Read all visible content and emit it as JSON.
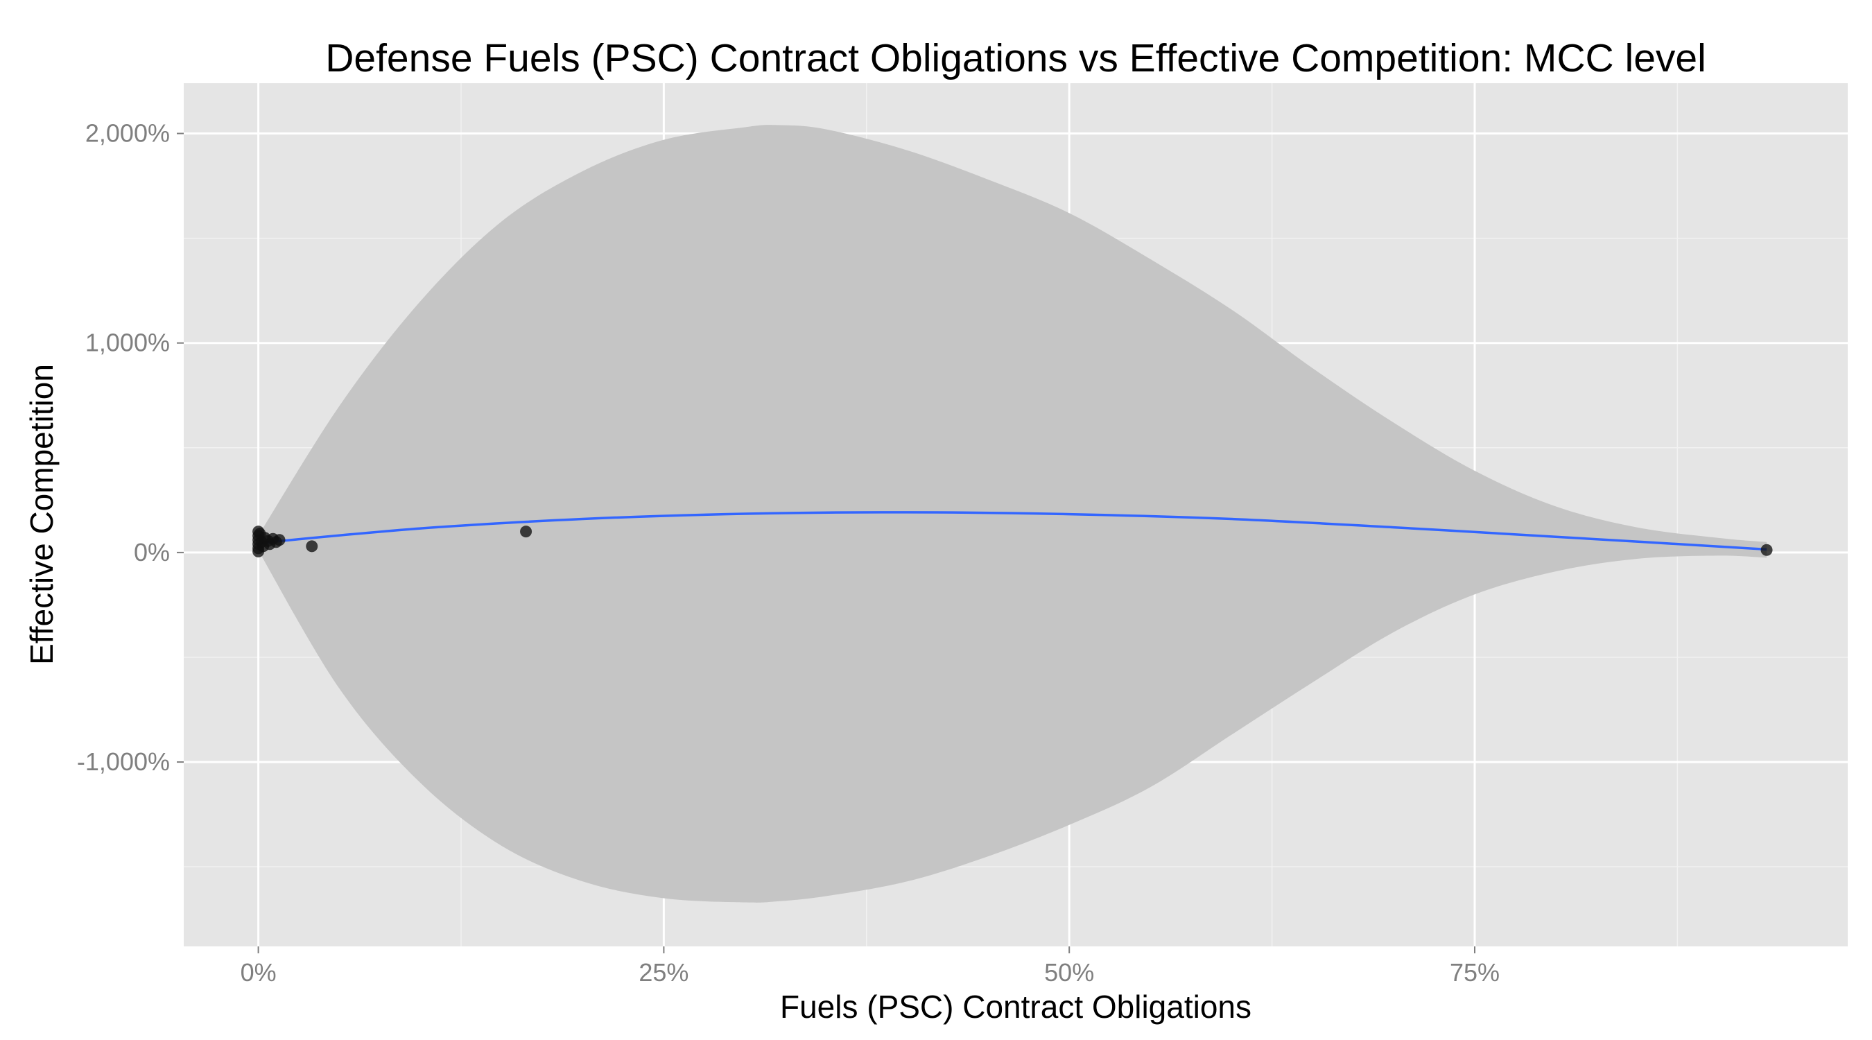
{
  "chart_data": {
    "type": "scatter",
    "title": "Defense Fuels (PSC) Contract Obligations vs Effective Competition: MCC level",
    "xlabel": "Fuels (PSC) Contract Obligations",
    "ylabel": "Effective Competition",
    "xlim": [
      -0.046,
      0.98
    ],
    "ylim": [
      -1880,
      2240
    ],
    "x_ticks": [
      {
        "value": 0,
        "label": "0%"
      },
      {
        "value": 0.25,
        "label": "25%"
      },
      {
        "value": 0.5,
        "label": "50%"
      },
      {
        "value": 0.75,
        "label": "75%"
      }
    ],
    "y_ticks": [
      {
        "value": -1000,
        "label": "-1,000%"
      },
      {
        "value": 0,
        "label": "0%"
      },
      {
        "value": 1000,
        "label": "1,000%"
      },
      {
        "value": 2000,
        "label": "2,000%"
      }
    ],
    "grid": true,
    "points": [
      {
        "x": 0.0,
        "y": 100
      },
      {
        "x": 0.0,
        "y": 80
      },
      {
        "x": 0.0,
        "y": 60
      },
      {
        "x": 0.0,
        "y": 40
      },
      {
        "x": 0.0,
        "y": 20
      },
      {
        "x": 0.0,
        "y": 5
      },
      {
        "x": 0.001,
        "y": 90
      },
      {
        "x": 0.002,
        "y": 50
      },
      {
        "x": 0.003,
        "y": 30
      },
      {
        "x": 0.004,
        "y": 70
      },
      {
        "x": 0.006,
        "y": 55
      },
      {
        "x": 0.007,
        "y": 40
      },
      {
        "x": 0.009,
        "y": 65
      },
      {
        "x": 0.011,
        "y": 50
      },
      {
        "x": 0.013,
        "y": 60
      },
      {
        "x": 0.033,
        "y": 30
      },
      {
        "x": 0.165,
        "y": 100
      },
      {
        "x": 0.93,
        "y": 12
      }
    ],
    "trend": {
      "x": [
        0.0,
        0.1,
        0.2,
        0.3,
        0.4,
        0.5,
        0.6,
        0.7,
        0.8,
        0.93
      ],
      "y": [
        45,
        115,
        160,
        185,
        192,
        183,
        160,
        120,
        75,
        15
      ]
    },
    "confidence_band": {
      "x": [
        0.0,
        0.05,
        0.1,
        0.15,
        0.2,
        0.25,
        0.3,
        0.32,
        0.35,
        0.4,
        0.45,
        0.5,
        0.55,
        0.6,
        0.65,
        0.7,
        0.75,
        0.8,
        0.85,
        0.9,
        0.93
      ],
      "upper": [
        80,
        700,
        1200,
        1580,
        1820,
        1970,
        2030,
        2040,
        2020,
        1920,
        1780,
        1620,
        1400,
        1160,
        880,
        620,
        390,
        220,
        120,
        70,
        50
      ],
      "lower": [
        10,
        -650,
        -1100,
        -1400,
        -1570,
        -1650,
        -1670,
        -1665,
        -1640,
        -1570,
        -1450,
        -1300,
        -1120,
        -870,
        -620,
        -380,
        -200,
        -90,
        -30,
        -15,
        -25
      ]
    },
    "colors": {
      "panel": "#e5e5e5",
      "grid_major": "#ffffff",
      "grid_minor": "#f2f2f2",
      "band": "#c5c5c5",
      "trend": "#3366ff",
      "points": "#111111"
    }
  }
}
